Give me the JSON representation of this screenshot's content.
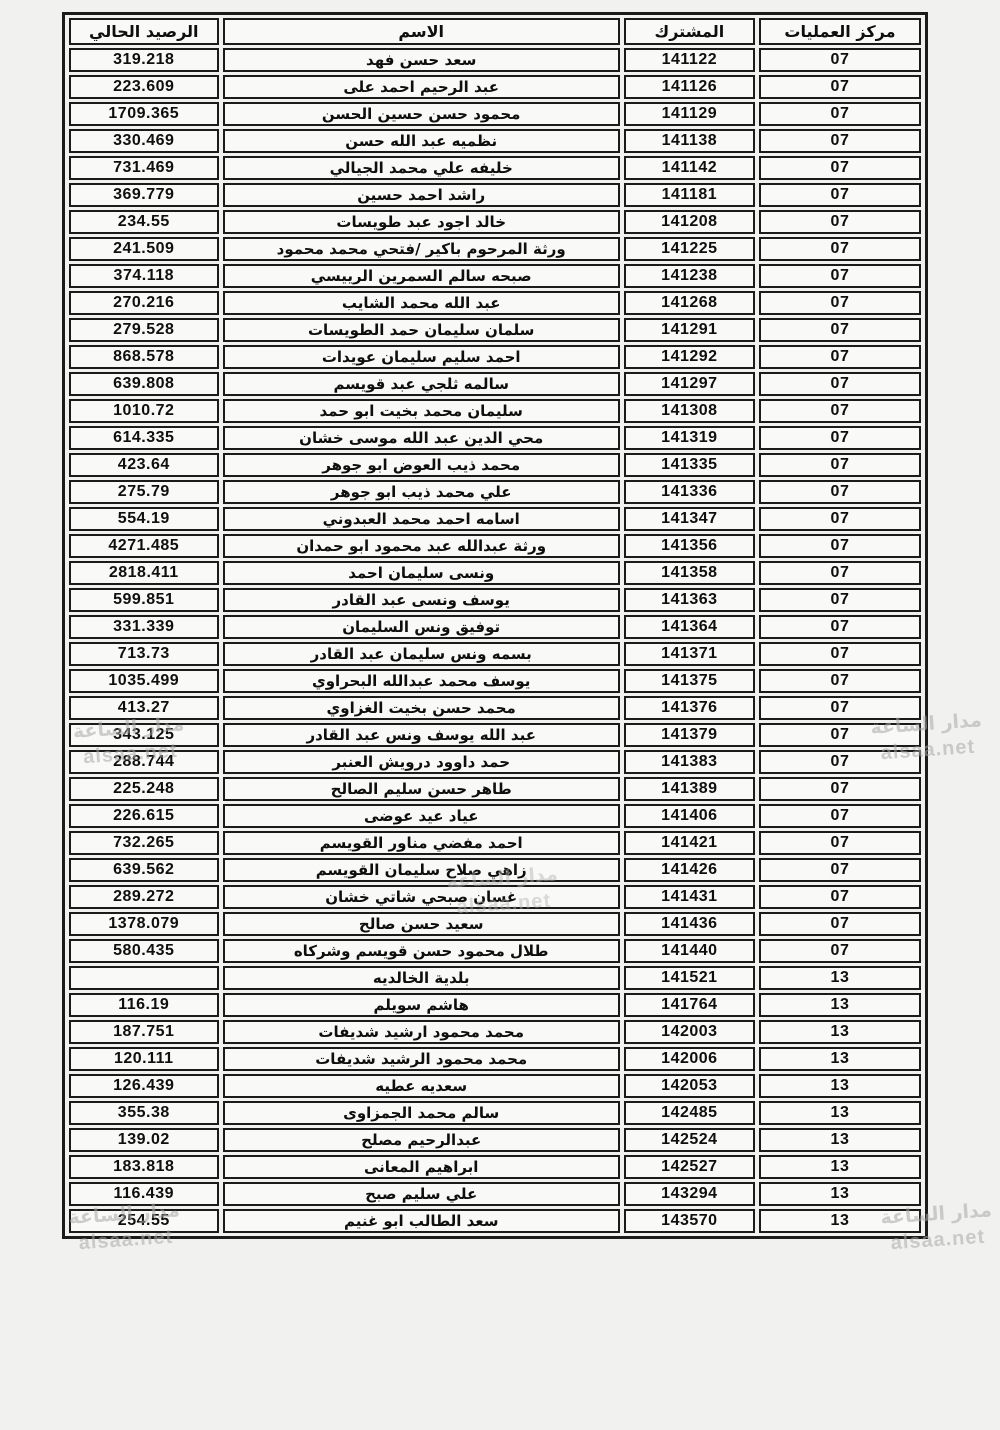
{
  "columns": [
    {
      "key": "center",
      "label": "مركز العمليات"
    },
    {
      "key": "subscriber",
      "label": "المشترك"
    },
    {
      "key": "name",
      "label": "الاسم"
    },
    {
      "key": "balance",
      "label": "الرصيد الحالي"
    }
  ],
  "rows": [
    {
      "center": "07",
      "subscriber": "141122",
      "name": "سعد حسن فهد",
      "balance": "319.218"
    },
    {
      "center": "07",
      "subscriber": "141126",
      "name": "عبد الرحيم احمد على",
      "balance": "223.609"
    },
    {
      "center": "07",
      "subscriber": "141129",
      "name": "محمود حسن حسين الحسن",
      "balance": "1709.365"
    },
    {
      "center": "07",
      "subscriber": "141138",
      "name": "نظميه عبد الله حسن",
      "balance": "330.469"
    },
    {
      "center": "07",
      "subscriber": "141142",
      "name": "خليفه علي محمد الجيالي",
      "balance": "731.469"
    },
    {
      "center": "07",
      "subscriber": "141181",
      "name": "راشد احمد حسين",
      "balance": "369.779"
    },
    {
      "center": "07",
      "subscriber": "141208",
      "name": "خالد اجود عبد طويسات",
      "balance": "234.55"
    },
    {
      "center": "07",
      "subscriber": "141225",
      "name": "ورثة المرحوم باكير /فتحي محمد محمود",
      "balance": "241.509"
    },
    {
      "center": "07",
      "subscriber": "141238",
      "name": "صبحه سالم السمرين الرييسي",
      "balance": "374.118"
    },
    {
      "center": "07",
      "subscriber": "141268",
      "name": "عبد الله محمد الشايب",
      "balance": "270.216"
    },
    {
      "center": "07",
      "subscriber": "141291",
      "name": "سلمان سليمان حمد الطويسات",
      "balance": "279.528"
    },
    {
      "center": "07",
      "subscriber": "141292",
      "name": "احمد سليم سليمان عويدات",
      "balance": "868.578"
    },
    {
      "center": "07",
      "subscriber": "141297",
      "name": "سالمه ثلجي عبد قويسم",
      "balance": "639.808"
    },
    {
      "center": "07",
      "subscriber": "141308",
      "name": "سليمان محمد بخيت ابو حمد",
      "balance": "1010.72"
    },
    {
      "center": "07",
      "subscriber": "141319",
      "name": "محي الدين عبد الله موسى خشان",
      "balance": "614.335"
    },
    {
      "center": "07",
      "subscriber": "141335",
      "name": "محمد ذيب العوض ابو جوهر",
      "balance": "423.64"
    },
    {
      "center": "07",
      "subscriber": "141336",
      "name": "علي محمد ذيب ابو جوهر",
      "balance": "275.79"
    },
    {
      "center": "07",
      "subscriber": "141347",
      "name": "اسامه احمد محمد العبدوني",
      "balance": "554.19"
    },
    {
      "center": "07",
      "subscriber": "141356",
      "name": "ورثة عبدالله عبد محمود ابو حمدان",
      "balance": "4271.485"
    },
    {
      "center": "07",
      "subscriber": "141358",
      "name": "ونسى سليمان احمد",
      "balance": "2818.411"
    },
    {
      "center": "07",
      "subscriber": "141363",
      "name": "يوسف ونسى عبد القادر",
      "balance": "599.851"
    },
    {
      "center": "07",
      "subscriber": "141364",
      "name": "توفيق ونس السليمان",
      "balance": "331.339"
    },
    {
      "center": "07",
      "subscriber": "141371",
      "name": "بسمه ونس سليمان عبد القادر",
      "balance": "713.73"
    },
    {
      "center": "07",
      "subscriber": "141375",
      "name": "يوسف محمد عبدالله البحراوي",
      "balance": "1035.499"
    },
    {
      "center": "07",
      "subscriber": "141376",
      "name": "محمد حسن بخيت الغزاوي",
      "balance": "413.27"
    },
    {
      "center": "07",
      "subscriber": "141379",
      "name": "عبد الله يوسف ونس عبد القادر",
      "balance": "343.125"
    },
    {
      "center": "07",
      "subscriber": "141383",
      "name": "حمد داوود درويش العنبر",
      "balance": "288.744"
    },
    {
      "center": "07",
      "subscriber": "141389",
      "name": "طاهر حسن سليم الصالح",
      "balance": "225.248"
    },
    {
      "center": "07",
      "subscriber": "141406",
      "name": "عياد عيد عوضى",
      "balance": "226.615"
    },
    {
      "center": "07",
      "subscriber": "141421",
      "name": "احمد مفضي مناور القويسم",
      "balance": "732.265"
    },
    {
      "center": "07",
      "subscriber": "141426",
      "name": "زاهي صلاح سليمان القويسم",
      "balance": "639.562"
    },
    {
      "center": "07",
      "subscriber": "141431",
      "name": "غسان صبحي شاتي خشان",
      "balance": "289.272"
    },
    {
      "center": "07",
      "subscriber": "141436",
      "name": "سعيد حسن صالح",
      "balance": "1378.079"
    },
    {
      "center": "07",
      "subscriber": "141440",
      "name": "طلال محمود حسن قويسم وشركاه",
      "balance": "580.435"
    },
    {
      "center": "13",
      "subscriber": "141521",
      "name": "بلدية الخالديه",
      "balance": ""
    },
    {
      "center": "13",
      "subscriber": "141764",
      "name": "هاشم سويلم",
      "balance": "116.19"
    },
    {
      "center": "13",
      "subscriber": "142003",
      "name": "محمد محمود ارشيد شديفات",
      "balance": "187.751"
    },
    {
      "center": "13",
      "subscriber": "142006",
      "name": "محمد محمود الرشيد شديفات",
      "balance": "120.111"
    },
    {
      "center": "13",
      "subscriber": "142053",
      "name": "سعديه عطيه",
      "balance": "126.439"
    },
    {
      "center": "13",
      "subscriber": "142485",
      "name": "سالم محمد الجمزاوى",
      "balance": "355.38"
    },
    {
      "center": "13",
      "subscriber": "142524",
      "name": "عبدالرحيم مصلح",
      "balance": "139.02"
    },
    {
      "center": "13",
      "subscriber": "142527",
      "name": "ابراهيم المعانى",
      "balance": "183.818"
    },
    {
      "center": "13",
      "subscriber": "143294",
      "name": "علي سليم صبح",
      "balance": "116.439"
    },
    {
      "center": "13",
      "subscriber": "143570",
      "name": "سعد الطالب ابو غنيم",
      "balance": "254.55"
    }
  ],
  "watermark": {
    "line1": "مدار الساعة",
    "line2": "alsaa.net"
  },
  "colors": {
    "page_bg": "#f1f1ef",
    "cell_bg": "#f9f9f7",
    "border": "#1b1b1b",
    "text": "#0f0f0f",
    "watermark": "#a8a8a8"
  }
}
